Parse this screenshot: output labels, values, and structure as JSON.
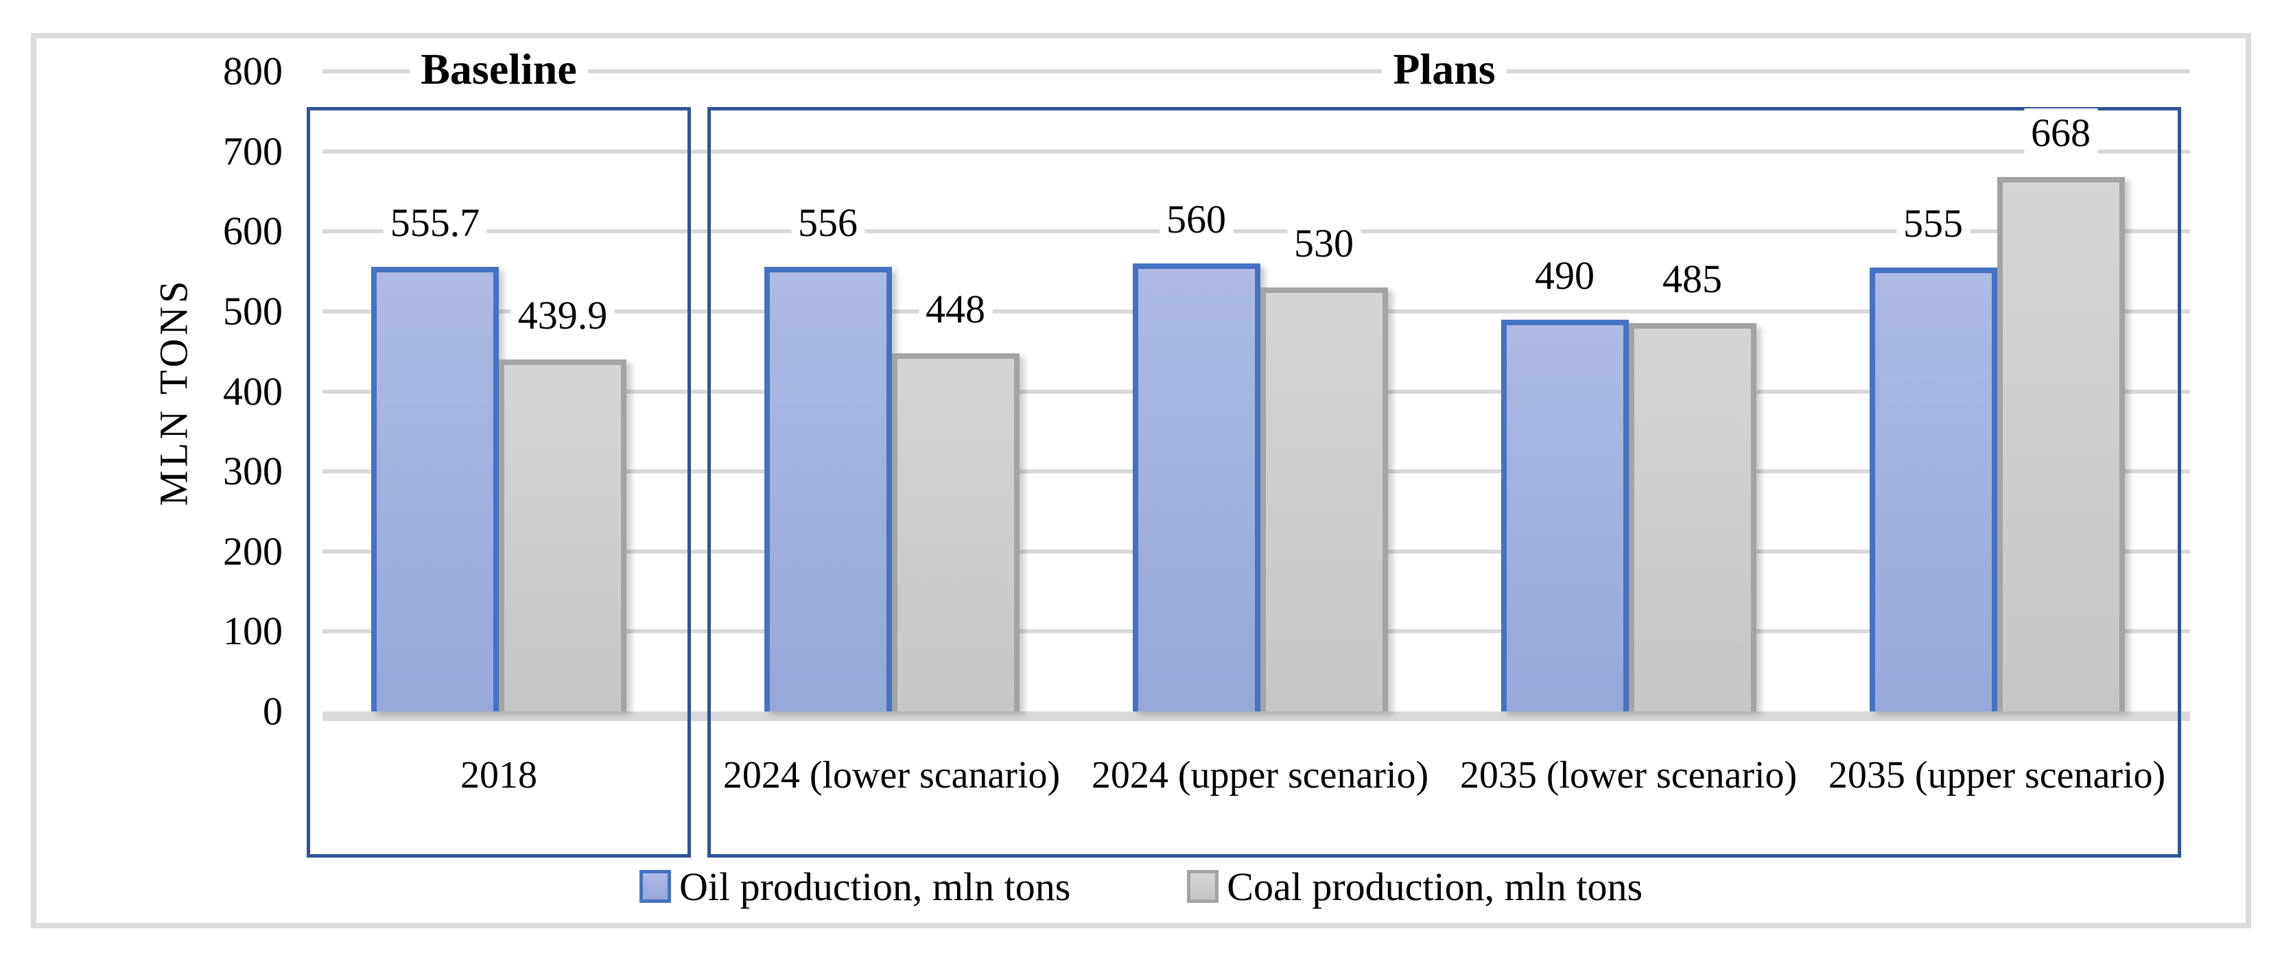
{
  "chart_data": {
    "type": "bar",
    "ylabel": "MLN TONS",
    "ylim": [
      0,
      800
    ],
    "yticks": [
      0,
      100,
      200,
      300,
      400,
      500,
      600,
      700,
      800
    ],
    "grid": true,
    "legend_position": "bottom",
    "sections": [
      {
        "label": "Baseline",
        "category_indexes": [
          0
        ]
      },
      {
        "label": "Plans",
        "category_indexes": [
          1,
          2,
          3,
          4
        ]
      }
    ],
    "categories": [
      "2018",
      "2024 (lower scanario)",
      "2024 (upper scenario)",
      "2035 (lower scenario)",
      "2035 (upper scenario)"
    ],
    "series": [
      {
        "name": "Oil production, mln tons",
        "values": [
          555.7,
          556,
          560,
          490,
          555
        ],
        "labels": [
          "555.7",
          "556",
          "560",
          "490",
          "555"
        ],
        "fill_top": "#ACBAE4",
        "fill_bottom": "#96A9DA",
        "border": "#4472C4"
      },
      {
        "name": "Coal production, mln tons",
        "values": [
          439.9,
          448,
          530,
          485,
          668
        ],
        "labels": [
          "439.9",
          "448",
          "530",
          "485",
          "668"
        ],
        "fill_top": "#D5D5D6",
        "fill_bottom": "#C6C6C7",
        "border": "#A3A3A3"
      }
    ]
  },
  "colors": {
    "section_box_border": "#2F5496",
    "gridline": "#D9D9D9",
    "frame_border": "#DBDBDB",
    "text": "#000000",
    "background": "#FFFFFF"
  }
}
